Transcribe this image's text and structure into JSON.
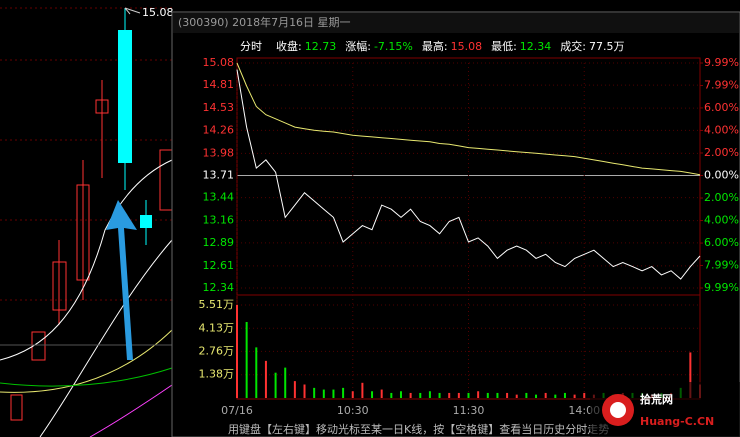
{
  "chart_data": {
    "type": "line",
    "title": "(300390) 2018年7月16日 星期一",
    "mode": "分时",
    "info": [
      {
        "label": "收盘:",
        "value": "12.73",
        "color": "#00e600"
      },
      {
        "label": "涨幅:",
        "value": "-7.15%",
        "color": "#00e600"
      },
      {
        "label": "最高:",
        "value": "15.08",
        "color": "#ff3232"
      },
      {
        "label": "最低:",
        "value": "12.34",
        "color": "#00e600"
      },
      {
        "label": "成交:",
        "value": "77.5万",
        "color": "#ffffff"
      }
    ],
    "categories": [
      "07/16",
      null,
      null,
      null,
      null,
      null,
      null,
      null,
      null,
      null,
      null,
      null,
      "10:30",
      null,
      null,
      null,
      null,
      null,
      null,
      null,
      null,
      null,
      null,
      null,
      "11:30",
      null,
      null,
      null,
      null,
      null,
      null,
      null,
      null,
      null,
      null,
      null,
      "14:00",
      null,
      null,
      null,
      null,
      null,
      null,
      null,
      null,
      null,
      null,
      null,
      null
    ],
    "series": [
      {
        "name": "price",
        "color": "#ffffff",
        "values": [
          15.0,
          14.3,
          13.8,
          13.9,
          13.75,
          13.2,
          13.35,
          13.5,
          13.4,
          13.3,
          13.2,
          12.9,
          13.0,
          13.1,
          13.05,
          13.35,
          13.3,
          13.2,
          13.3,
          13.15,
          13.1,
          13.0,
          13.15,
          13.2,
          12.9,
          12.95,
          12.85,
          12.7,
          12.8,
          12.85,
          12.8,
          12.7,
          12.75,
          12.65,
          12.6,
          12.7,
          12.75,
          12.8,
          12.7,
          12.6,
          12.65,
          12.6,
          12.55,
          12.6,
          12.5,
          12.55,
          12.45,
          12.6,
          12.73
        ]
      },
      {
        "name": "average",
        "color": "#e8e870",
        "values": [
          15.08,
          14.8,
          14.55,
          14.45,
          14.4,
          14.35,
          14.3,
          14.28,
          14.26,
          14.25,
          14.24,
          14.22,
          14.2,
          14.19,
          14.18,
          14.17,
          14.16,
          14.15,
          14.14,
          14.13,
          14.12,
          14.1,
          14.09,
          14.07,
          14.05,
          14.04,
          14.03,
          14.02,
          14.01,
          14.0,
          13.99,
          13.98,
          13.97,
          13.96,
          13.95,
          13.94,
          13.92,
          13.9,
          13.88,
          13.86,
          13.84,
          13.82,
          13.8,
          13.79,
          13.78,
          13.77,
          13.76,
          13.74,
          13.72
        ]
      }
    ],
    "volume": [
      5.51,
      4.5,
      3.0,
      2.2,
      1.5,
      1.8,
      1.0,
      0.8,
      0.6,
      0.5,
      0.5,
      0.6,
      0.4,
      0.9,
      0.4,
      0.5,
      0.3,
      0.4,
      0.3,
      0.3,
      0.4,
      0.3,
      0.3,
      0.3,
      0.3,
      0.4,
      0.3,
      0.3,
      0.3,
      0.2,
      0.3,
      0.2,
      0.3,
      0.2,
      0.3,
      0.2,
      0.3,
      0.2,
      0.3,
      0.2,
      0.3,
      0.3,
      0.3,
      0.2,
      0.3,
      0.3,
      0.6,
      2.7,
      0.8
    ],
    "up_color": "#ff3232",
    "down_color": "#00e600",
    "ylim": [
      12.34,
      15.08
    ],
    "yticks": [
      15.08,
      14.81,
      14.53,
      14.26,
      13.98,
      13.71,
      13.44,
      13.16,
      12.89,
      12.61,
      12.34
    ],
    "y2lim": [
      -9.99,
      9.99
    ],
    "y2ticks": [
      {
        "value": 9.99,
        "label": "9.99%"
      },
      {
        "value": 7.99,
        "label": "7.99%"
      },
      {
        "value": 6.0,
        "label": "6.00%"
      },
      {
        "value": 4.0,
        "label": "4.00%"
      },
      {
        "value": 2.0,
        "label": "2.00%"
      },
      {
        "value": 0,
        "label": "0.00%"
      },
      {
        "value": -2.0,
        "label": "2.00%"
      },
      {
        "value": -4.0,
        "label": "4.00%"
      },
      {
        "value": -6.0,
        "label": "6.00%"
      },
      {
        "value": -7.99,
        "label": "7.99%"
      },
      {
        "value": -9.99,
        "label": "9.99%"
      }
    ],
    "vlim": [
      0,
      5.51
    ],
    "vticks": [
      {
        "value": 5.51,
        "label": "5.51万"
      },
      {
        "value": 4.13,
        "label": "4.13万"
      },
      {
        "value": 2.76,
        "label": "2.76万"
      },
      {
        "value": 1.38,
        "label": "1.38万"
      }
    ],
    "candle_high_label": "15.08",
    "footer": "用键盘【左右键】移动光标至某一日K线，按【空格键】查看当日历史分时走势",
    "watermark": {
      "name": "拾荒网",
      "url": "Huang-C.CN"
    }
  }
}
